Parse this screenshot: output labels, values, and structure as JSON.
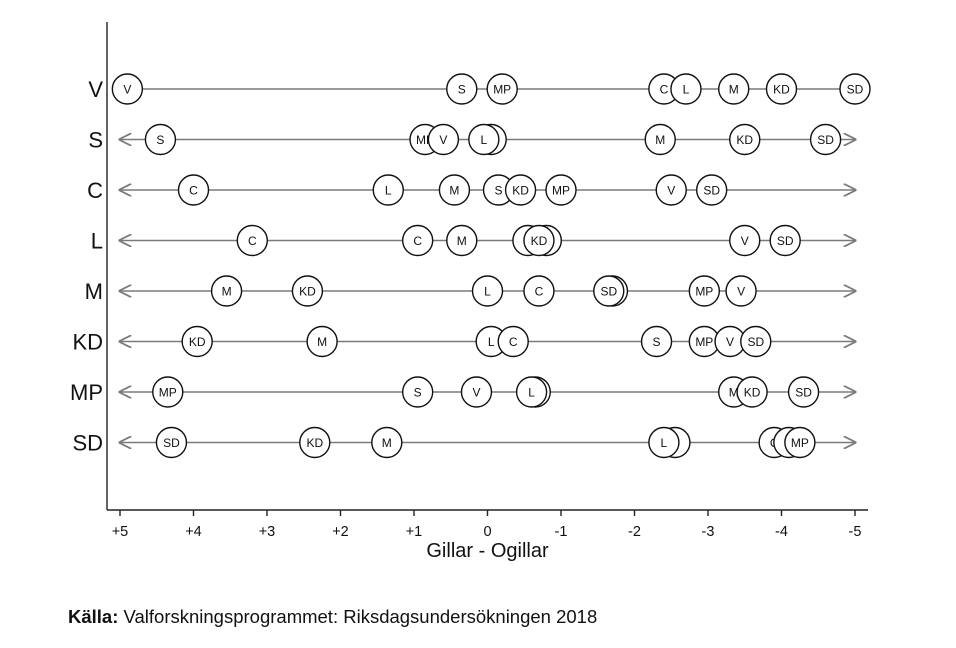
{
  "chart_data": {
    "type": "scatter",
    "xlabel": "Gillar - Ogillar",
    "x_ticks": [
      "+5",
      "+4",
      "+3",
      "+2",
      "+1",
      "0",
      "-1",
      "-2",
      "-3",
      "-4",
      "-5"
    ],
    "xlim": [
      5,
      -5
    ],
    "rows": [
      {
        "label": "V",
        "points": [
          {
            "party": "V",
            "x": 4.9
          },
          {
            "party": "S",
            "x": 0.35
          },
          {
            "party": "MP",
            "x": -0.2
          },
          {
            "party": "C",
            "x": -2.4
          },
          {
            "party": "L",
            "x": -2.7
          },
          {
            "party": "M",
            "x": -3.35
          },
          {
            "party": "KD",
            "x": -4.0
          },
          {
            "party": "SD",
            "x": -5.0
          }
        ]
      },
      {
        "label": "S",
        "points": [
          {
            "party": "S",
            "x": 4.45
          },
          {
            "party": "MP",
            "x": 0.85
          },
          {
            "party": "V",
            "x": 0.6
          },
          {
            "party": "",
            "x": -0.05
          },
          {
            "party": "L",
            "x": 0.05
          },
          {
            "party": "M",
            "x": -2.35
          },
          {
            "party": "KD",
            "x": -3.5
          },
          {
            "party": "SD",
            "x": -4.6
          }
        ]
      },
      {
        "label": "C",
        "points": [
          {
            "party": "C",
            "x": 4.0
          },
          {
            "party": "L",
            "x": 1.35
          },
          {
            "party": "M",
            "x": 0.45
          },
          {
            "party": "S",
            "x": -0.15
          },
          {
            "party": "KD",
            "x": -0.45
          },
          {
            "party": "MP",
            "x": -1.0
          },
          {
            "party": "V",
            "x": -2.5
          },
          {
            "party": "SD",
            "x": -3.05
          }
        ]
      },
      {
        "label": "L",
        "points": [
          {
            "party": "C",
            "x": 3.2
          },
          {
            "party": "C",
            "x": 0.95
          },
          {
            "party": "M",
            "x": 0.35
          },
          {
            "party": "",
            "x": -0.55
          },
          {
            "party": "",
            "x": -0.8
          },
          {
            "party": "KD",
            "x": -0.7
          },
          {
            "party": "V",
            "x": -3.5
          },
          {
            "party": "SD",
            "x": -4.05
          }
        ]
      },
      {
        "label": "M",
        "points": [
          {
            "party": "M",
            "x": 3.55
          },
          {
            "party": "KD",
            "x": 2.45
          },
          {
            "party": "L",
            "x": 0.0
          },
          {
            "party": "C",
            "x": -0.7
          },
          {
            "party": "",
            "x": -1.7
          },
          {
            "party": "SD",
            "x": -1.65
          },
          {
            "party": "MP",
            "x": -2.95
          },
          {
            "party": "V",
            "x": -3.45
          }
        ]
      },
      {
        "label": "KD",
        "points": [
          {
            "party": "KD",
            "x": 3.95
          },
          {
            "party": "M",
            "x": 2.25
          },
          {
            "party": "L",
            "x": -0.05
          },
          {
            "party": "C",
            "x": -0.35
          },
          {
            "party": "S",
            "x": -2.3
          },
          {
            "party": "MP",
            "x": -2.95
          },
          {
            "party": "V",
            "x": -3.3
          },
          {
            "party": "SD",
            "x": -3.65
          }
        ]
      },
      {
        "label": "MP",
        "points": [
          {
            "party": "MP",
            "x": 4.35
          },
          {
            "party": "S",
            "x": 0.95
          },
          {
            "party": "V",
            "x": 0.15
          },
          {
            "party": "",
            "x": -0.65
          },
          {
            "party": "L",
            "x": -0.6
          },
          {
            "party": "M",
            "x": -3.35
          },
          {
            "party": "KD",
            "x": -3.6
          },
          {
            "party": "SD",
            "x": -4.3
          }
        ]
      },
      {
        "label": "SD",
        "points": [
          {
            "party": "SD",
            "x": 4.3
          },
          {
            "party": "KD",
            "x": 2.35
          },
          {
            "party": "M",
            "x": 1.37
          },
          {
            "party": "",
            "x": -2.55
          },
          {
            "party": "L",
            "x": -2.4
          },
          {
            "party": "C",
            "x": -3.9
          },
          {
            "party": "",
            "x": -4.1
          },
          {
            "party": "MP",
            "x": -4.25
          }
        ]
      }
    ]
  },
  "source": {
    "label": "Källa:",
    "text": " Valforskningsprogrammet: Riksdagsundersökningen 2018"
  }
}
